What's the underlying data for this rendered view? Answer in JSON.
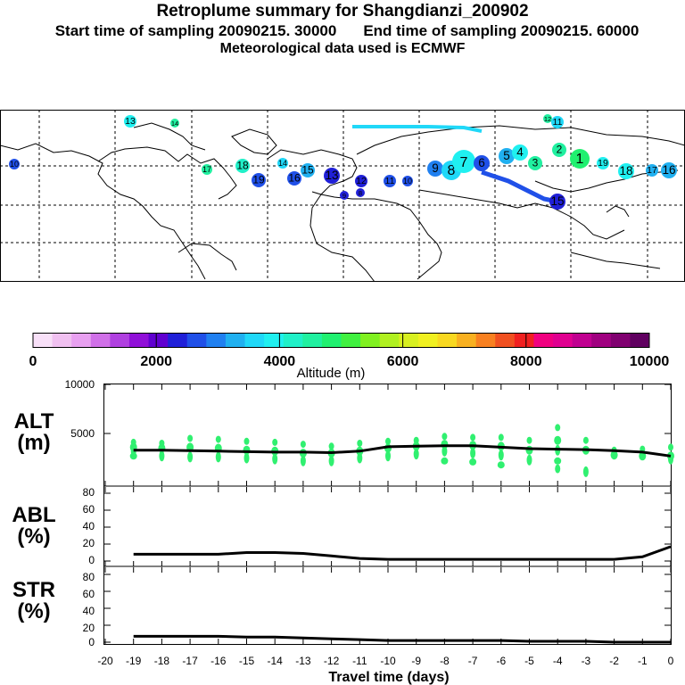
{
  "header": {
    "title": "Retroplume summary for Shangdianzi_200902",
    "start_label": "Start time of sampling 20090215. 30000",
    "end_label": "End time of sampling 20090215. 60000",
    "met_label": "Meteorological data used is ECMWF"
  },
  "colorbar": {
    "axis_label": "Altitude (m)",
    "tick_labels": [
      "0",
      "2000",
      "4000",
      "6000",
      "8000",
      "10000"
    ],
    "colors": [
      "#f8e0f8",
      "#f0c0f0",
      "#e8a0f0",
      "#d070e8",
      "#b040e0",
      "#9010d8",
      "#6000d0",
      "#2020d8",
      "#2050e8",
      "#2080f0",
      "#20b0f0",
      "#20d8f8",
      "#20f0f0",
      "#20f0c8",
      "#20f0a0",
      "#20f070",
      "#40f040",
      "#80f020",
      "#b0f020",
      "#d8f020",
      "#f0f020",
      "#f8d820",
      "#f8b020",
      "#f88020",
      "#f05020",
      "#f02020",
      "#f00080",
      "#e00090",
      "#c00090",
      "#a00080",
      "#800070",
      "#600060"
    ]
  },
  "map": {
    "plume_labels": [
      "19",
      "18",
      "17",
      "16",
      "15",
      "14",
      "13",
      "12",
      "11",
      "10",
      "9",
      "8",
      "7",
      "6",
      "5",
      "4",
      "3",
      "2",
      "1"
    ]
  },
  "panels": {
    "alt": {
      "label1": "ALT",
      "label2": "(m)",
      "y_ticks": [
        "10000",
        "5000"
      ]
    },
    "abl": {
      "label1": "ABL",
      "label2": "(%)",
      "y_ticks": [
        "80",
        "60",
        "40",
        "20",
        "0"
      ]
    },
    "str": {
      "label1": "STR",
      "label2": "(%)",
      "y_ticks": [
        "80",
        "60",
        "40",
        "20",
        "0"
      ]
    },
    "x_ticks": [
      "-20",
      "-19",
      "-18",
      "-17",
      "-16",
      "-15",
      "-14",
      "-13",
      "-12",
      "-11",
      "-10",
      "-9",
      "-8",
      "-7",
      "-6",
      "-5",
      "-4",
      "-3",
      "-2",
      "-1",
      "0"
    ],
    "x_label": "Travel time (days)"
  },
  "chart_data": {
    "type": "line",
    "x": [
      -19,
      -18,
      -17,
      -16,
      -15,
      -14,
      -13,
      -12,
      -11,
      -10,
      -9,
      -8,
      -7,
      -6,
      -5,
      -4,
      -3,
      -2,
      -1,
      0
    ],
    "xlim": [
      -20,
      0
    ],
    "xlabel": "Travel time (days)",
    "series": [
      {
        "name": "ALT (m)",
        "ylim": [
          0,
          10000
        ],
        "values": [
          3300,
          3300,
          3250,
          3200,
          3150,
          3100,
          3100,
          3050,
          3200,
          3650,
          3700,
          3750,
          3750,
          3600,
          3450,
          3400,
          3350,
          3250,
          3100,
          2700
        ]
      },
      {
        "name": "ABL (%)",
        "ylim": [
          0,
          100
        ],
        "values": [
          8,
          8,
          8,
          8,
          10,
          10,
          9,
          6,
          3,
          2,
          2,
          2,
          2,
          2,
          2,
          2,
          2,
          2,
          5,
          17
        ]
      },
      {
        "name": "STR (%)",
        "ylim": [
          0,
          100
        ],
        "values": [
          7,
          7,
          7,
          7,
          6,
          6,
          5,
          4,
          3,
          2,
          2,
          2,
          2,
          2,
          1,
          1,
          1,
          0,
          0,
          0
        ]
      }
    ],
    "alt_scatter": [
      {
        "x": -19,
        "y": [
          4100,
          3600,
          3200,
          2700
        ]
      },
      {
        "x": -18,
        "y": [
          4000,
          3500,
          2700
        ]
      },
      {
        "x": -17,
        "y": [
          4500,
          3600,
          2600
        ]
      },
      {
        "x": -16,
        "y": [
          4400,
          3500,
          2600
        ]
      },
      {
        "x": -15,
        "y": [
          4200,
          3300,
          2500
        ]
      },
      {
        "x": -14,
        "y": [
          4100,
          3200,
          2400
        ]
      },
      {
        "x": -13,
        "y": [
          3900,
          3000,
          2200
        ]
      },
      {
        "x": -12,
        "y": [
          3700,
          3000,
          2200
        ]
      },
      {
        "x": -11,
        "y": [
          4000,
          3200,
          2500
        ]
      },
      {
        "x": -10,
        "y": [
          4200,
          3500,
          2700
        ]
      },
      {
        "x": -9,
        "y": [
          4300,
          3700,
          2900
        ]
      },
      {
        "x": -8,
        "y": [
          4700,
          3900,
          3200,
          2200
        ]
      },
      {
        "x": -7,
        "y": [
          4600,
          3800,
          3000,
          2100
        ]
      },
      {
        "x": -6,
        "y": [
          4600,
          3700,
          2800,
          1800
        ]
      },
      {
        "x": -5,
        "y": [
          4300,
          3300,
          2300
        ]
      },
      {
        "x": -4,
        "y": [
          5600,
          4300,
          3300,
          2200,
          1400
        ]
      },
      {
        "x": -3,
        "y": [
          4300,
          3300,
          1100
        ]
      },
      {
        "x": -2,
        "y": [
          3300,
          2800
        ]
      },
      {
        "x": -1,
        "y": [
          3400,
          2700
        ]
      },
      {
        "x": 0,
        "y": [
          3600,
          2700,
          2400
        ]
      }
    ]
  }
}
